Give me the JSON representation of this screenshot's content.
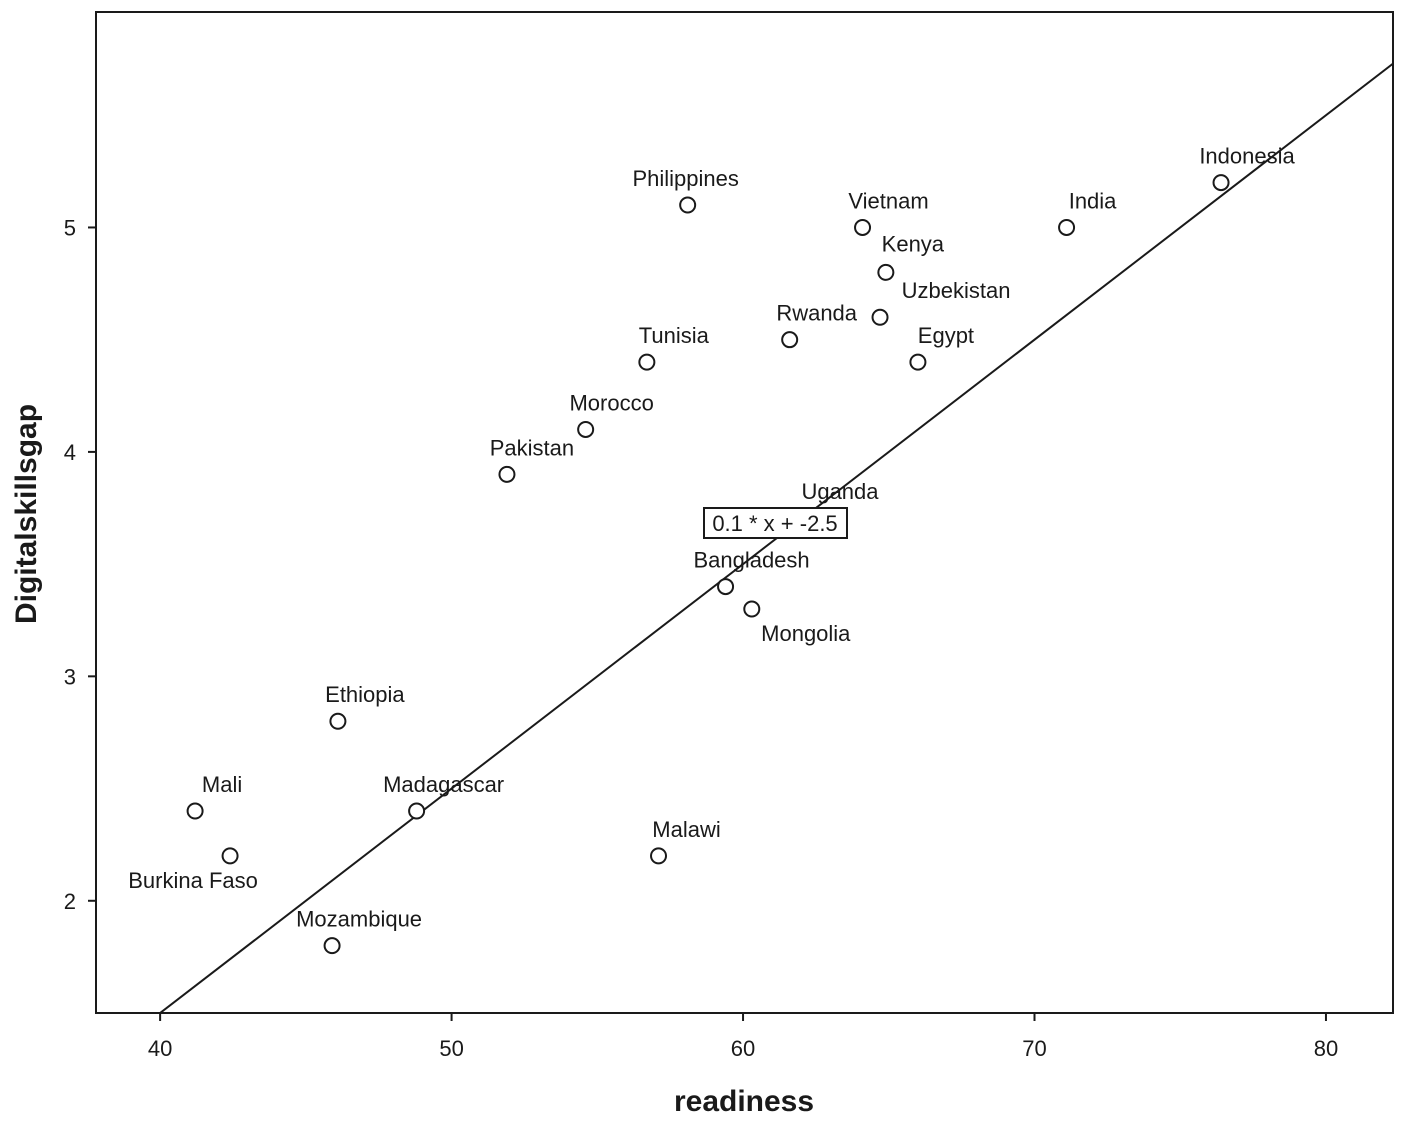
{
  "chart_data": {
    "type": "scatter",
    "xlabel": "readiness",
    "ylabel": "Digitalskillsgap",
    "xlim": [
      37.8,
      82.3
    ],
    "ylim": [
      1.5,
      5.96
    ],
    "xticks": [
      40,
      50,
      60,
      70,
      80
    ],
    "yticks": [
      2,
      3,
      4,
      5
    ],
    "grid": false,
    "points": [
      {
        "label": "Indonesia",
        "x": 76.4,
        "y": 5.2
      },
      {
        "label": "Philippines",
        "x": 58.1,
        "y": 5.1
      },
      {
        "label": "Vietnam",
        "x": 64.1,
        "y": 5.0
      },
      {
        "label": "India",
        "x": 71.1,
        "y": 5.0
      },
      {
        "label": "Kenya",
        "x": 64.9,
        "y": 4.8
      },
      {
        "label": "Uzbekistan",
        "x": 64.7,
        "y": 4.6
      },
      {
        "label": "Rwanda",
        "x": 61.6,
        "y": 4.5
      },
      {
        "label": "Tunisia",
        "x": 56.7,
        "y": 4.4
      },
      {
        "label": "Egypt",
        "x": 66.0,
        "y": 4.4
      },
      {
        "label": "Morocco",
        "x": 54.6,
        "y": 4.1
      },
      {
        "label": "Pakistan",
        "x": 51.9,
        "y": 3.9
      },
      {
        "label": "Uganda",
        "x": null,
        "y": null
      },
      {
        "label": "Bangladesh",
        "x": 59.4,
        "y": 3.4
      },
      {
        "label": "Mongolia",
        "x": 60.3,
        "y": 3.3
      },
      {
        "label": "Ethiopia",
        "x": 46.1,
        "y": 2.8
      },
      {
        "label": "Mali",
        "x": 41.2,
        "y": 2.4
      },
      {
        "label": "Madagascar",
        "x": 48.8,
        "y": 2.4
      },
      {
        "label": "Burkina Faso",
        "x": 42.4,
        "y": 2.2
      },
      {
        "label": "Malawi",
        "x": 57.1,
        "y": 2.2
      },
      {
        "label": "Mozambique",
        "x": 45.9,
        "y": 1.8
      }
    ],
    "fit_line": {
      "equation": "0.1 * x + -2.5",
      "slope": 0.1,
      "intercept": -2.5
    }
  }
}
